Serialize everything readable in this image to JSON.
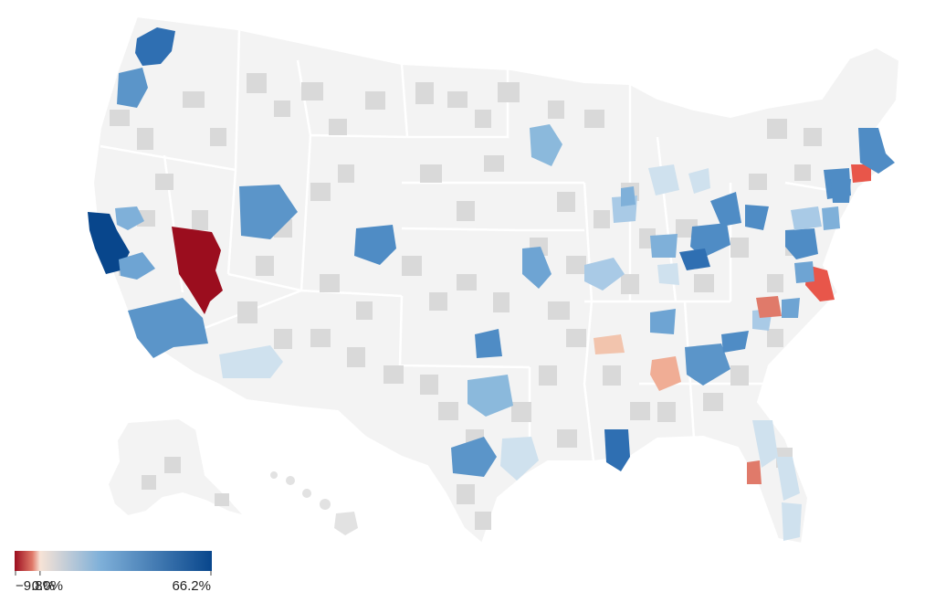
{
  "map": {
    "background_state_color": "#f3f3f3",
    "metro_neutral_color": "#d9d9d9",
    "state_border_color": "#ffffff"
  },
  "legend": {
    "min_value": -9.8,
    "mid_value": 0.0,
    "max_value": 66.2,
    "min_label": "−9.8%",
    "mid_label": "0.0%",
    "max_label": "66.2%",
    "colors": {
      "low": "#9b0d1e",
      "low_mid": "#e07a6a",
      "mid": "#f7e3d6",
      "high_mid": "#7fb0d9",
      "high": "#08468c"
    }
  }
}
